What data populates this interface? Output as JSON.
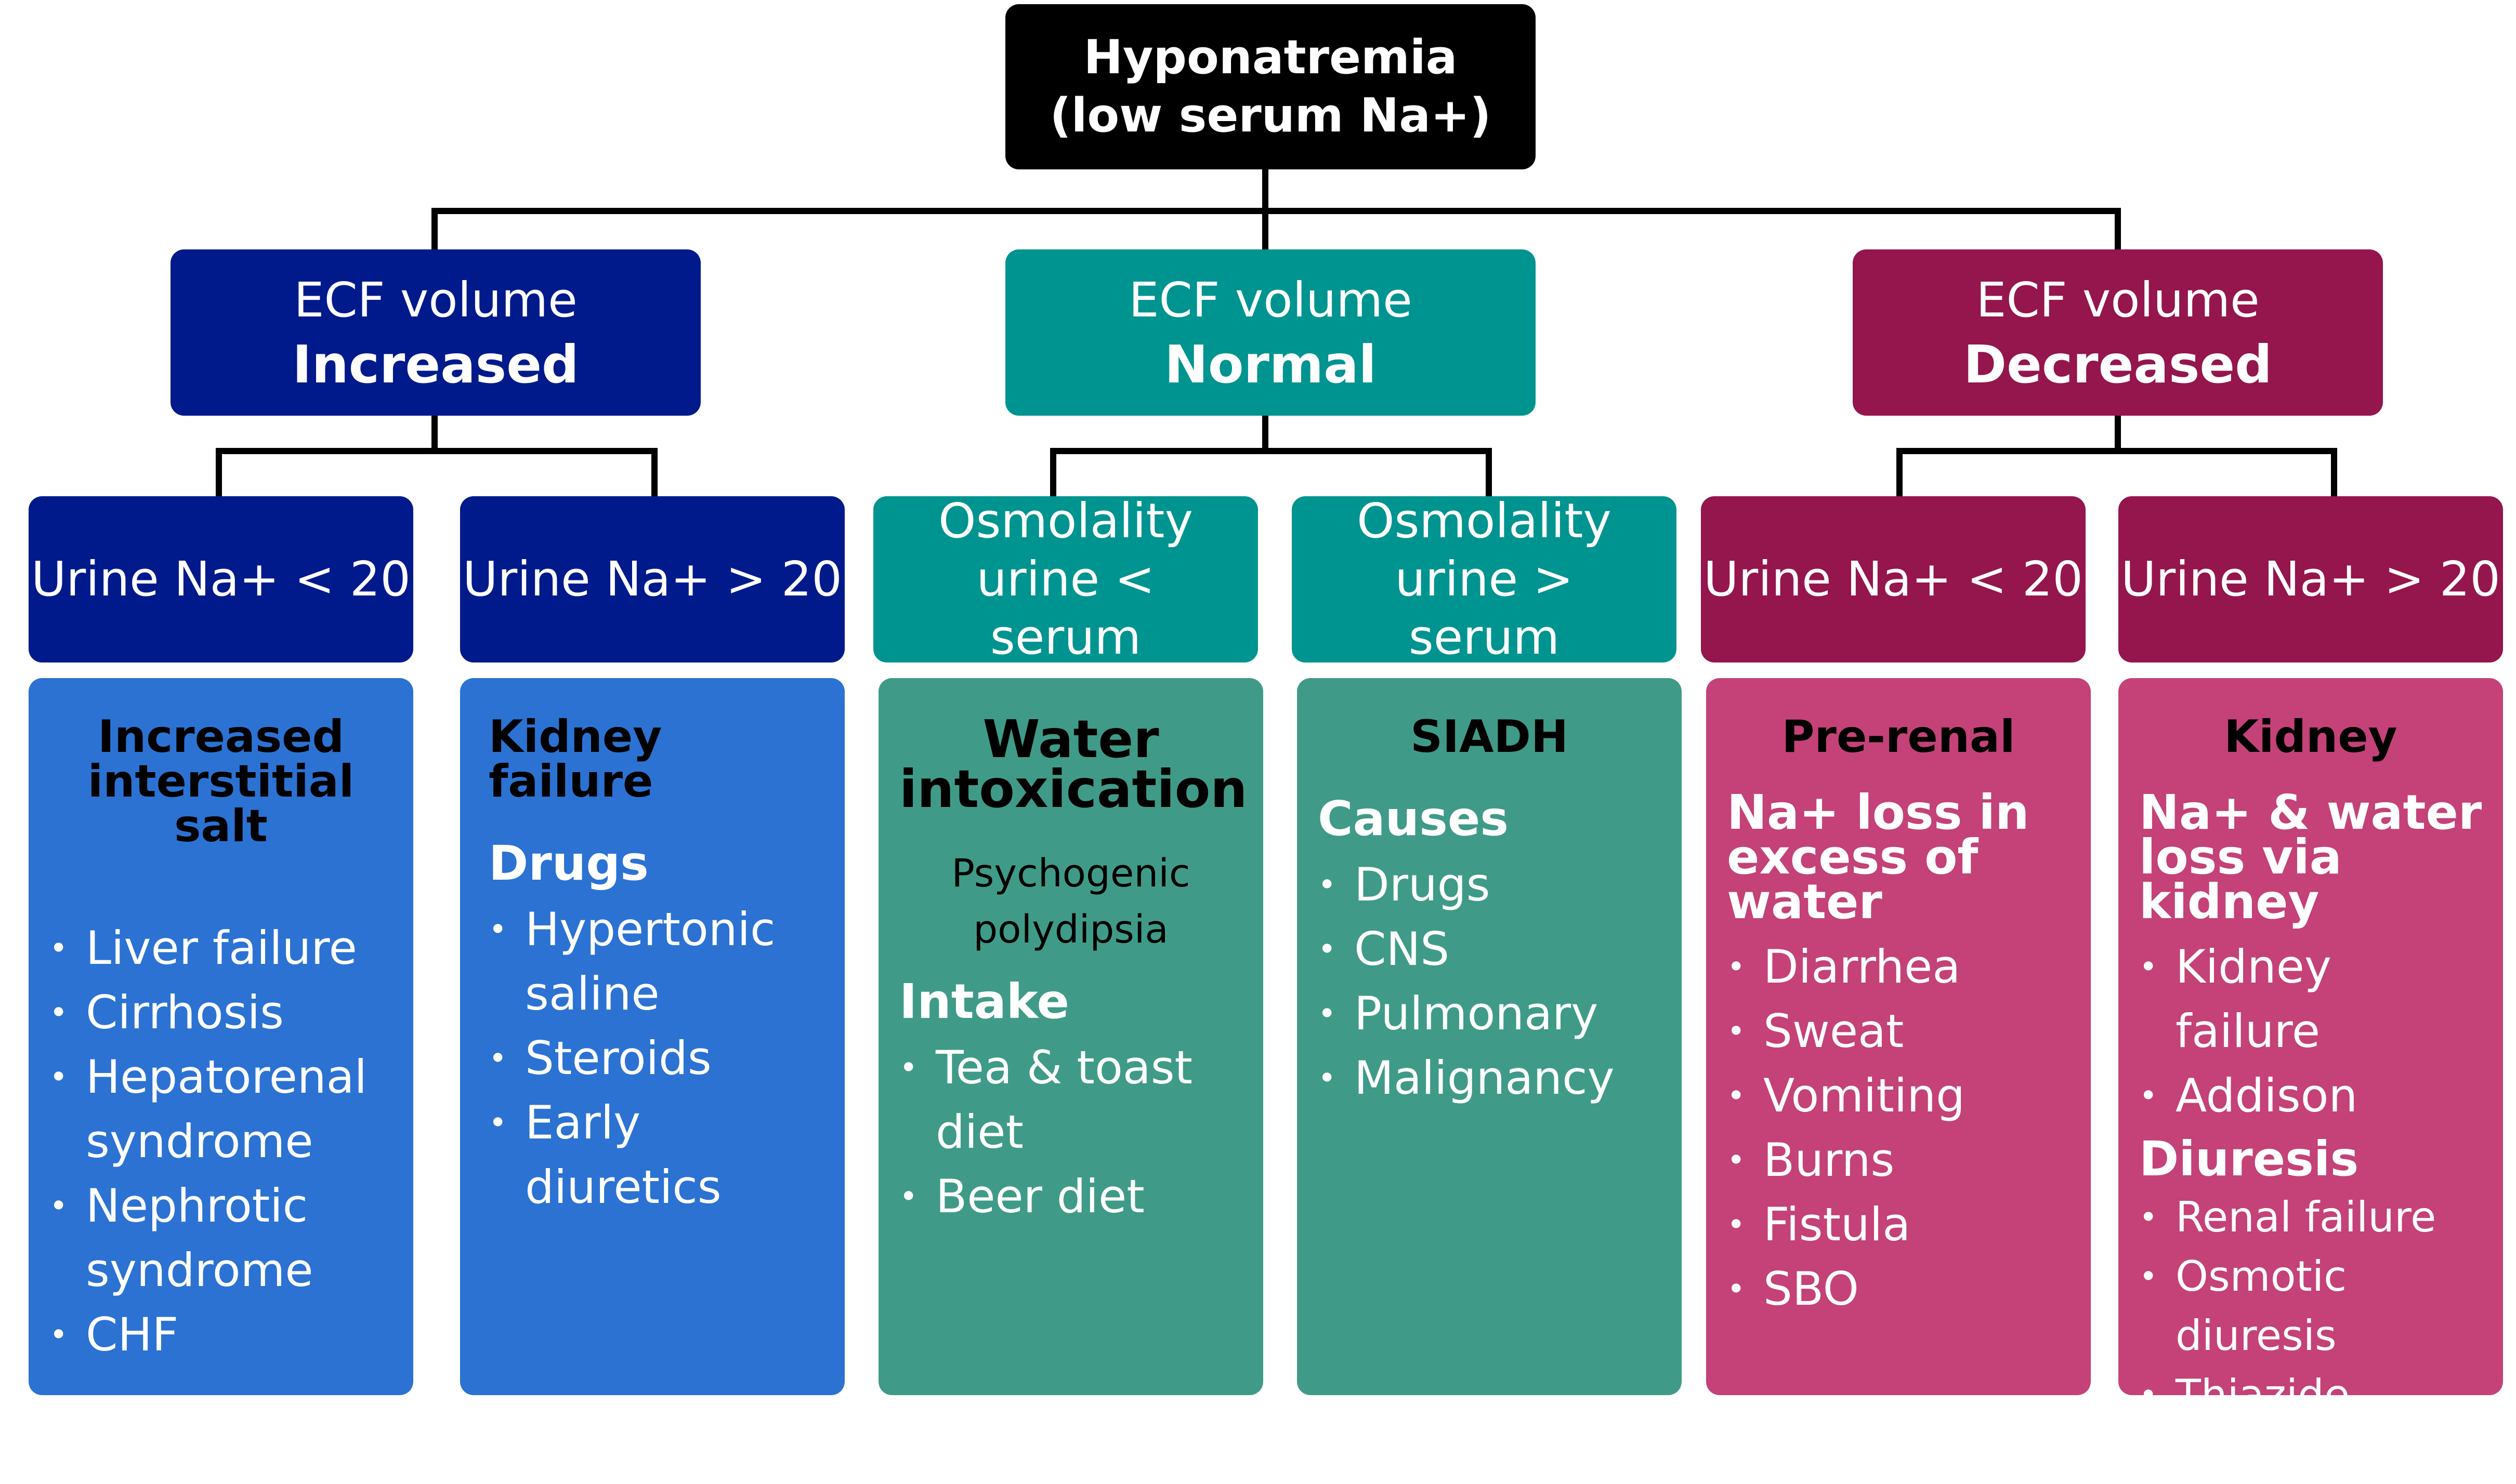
{
  "root": {
    "line1": "Hyponatremia",
    "line2": "(low serum Na+)"
  },
  "increased": {
    "label": "ECF volume",
    "value": "Increased",
    "left": {
      "label": "Urine Na+ < 20",
      "title": "Increased interstitial salt",
      "items": [
        "Liver failure",
        "Cirrhosis",
        "Hepatorenal syndrome",
        "Nephrotic syndrome",
        "CHF"
      ]
    },
    "right": {
      "label": "Urine Na+ > 20",
      "title": "Kidney failure",
      "subtitle": "Drugs",
      "items": [
        "Hypertonic saline",
        "Steroids",
        "Early diuretics"
      ]
    }
  },
  "normal": {
    "label": "ECF volume",
    "value": "Normal",
    "left": {
      "label": "Osmolality urine < serum",
      "title": "Water intoxication",
      "note": "Psychogenic polydipsia",
      "subtitle": "Intake",
      "items": [
        "Tea & toast diet",
        "Beer diet"
      ]
    },
    "right": {
      "label": "Osmolality urine > serum",
      "title": "SIADH",
      "subtitle": "Causes",
      "items": [
        "Drugs",
        "CNS",
        "Pulmonary",
        "Malignancy"
      ]
    }
  },
  "decreased": {
    "label": "ECF volume",
    "value": "Decreased",
    "left": {
      "label": "Urine Na+ < 20",
      "title": "Pre-renal",
      "subtitle": "Na+ loss in excess of water",
      "items": [
        "Diarrhea",
        "Sweat",
        "Vomiting",
        "Burns",
        "Fistula",
        "SBO"
      ]
    },
    "right": {
      "label": "Urine Na+ > 20",
      "title": "Kidney",
      "subtitle": "Na+ & water loss via kidney",
      "items": [
        "Kidney failure",
        "Addison"
      ],
      "subtitle2": "Diuresis",
      "items2": [
        "Renal failure",
        "Osmotic diuresis",
        "Thiazide diuretics"
      ]
    }
  }
}
